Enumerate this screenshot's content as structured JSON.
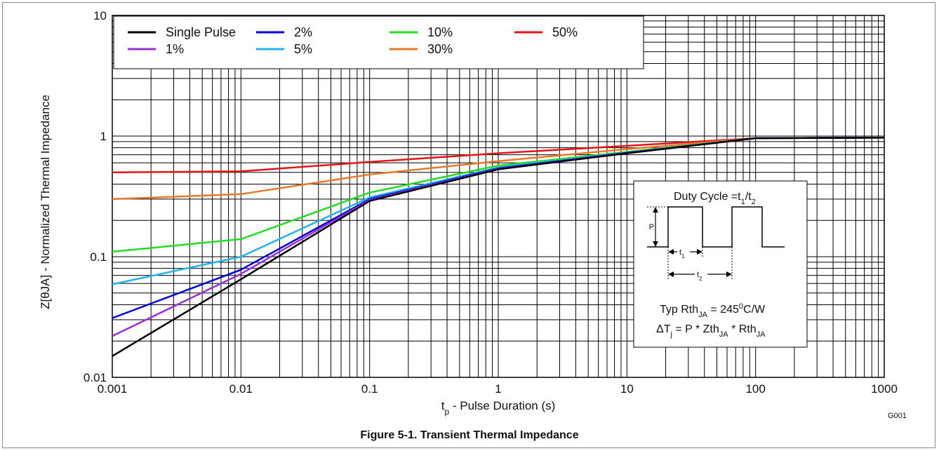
{
  "caption": "Figure 5-1. Transient Thermal Impedance",
  "chart_data": {
    "type": "line",
    "x_scale": "log",
    "y_scale": "log",
    "xlim": [
      0.001,
      1000
    ],
    "ylim": [
      0.01,
      10
    ],
    "grid": true,
    "xlabel_main": "t",
    "xlabel_sub": "p",
    "xlabel_rest": " - Pulse Duration (s)",
    "ylabel": "Z[θJA] - Normalized Thermal Impedance",
    "x_ticks": [
      "0.001",
      "0.01",
      "0.1",
      "1",
      "10",
      "100",
      "1000"
    ],
    "y_ticks": [
      "0.01",
      "0.1",
      "1",
      "10"
    ],
    "corner_code": "G001",
    "legend_position": "top-left",
    "series": [
      {
        "name": "Single Pulse",
        "color": "#000000",
        "x": [
          0.001,
          0.01,
          0.1,
          1,
          10,
          100,
          1000
        ],
        "y": [
          0.015,
          0.065,
          0.29,
          0.53,
          0.72,
          0.96,
          0.97
        ]
      },
      {
        "name": "1%",
        "color": "#9b30d9",
        "x": [
          0.001,
          0.01,
          0.1,
          1,
          10,
          100,
          1000
        ],
        "y": [
          0.022,
          0.072,
          0.295,
          0.535,
          0.72,
          0.96,
          0.97
        ]
      },
      {
        "name": "2%",
        "color": "#0000e6",
        "x": [
          0.001,
          0.01,
          0.1,
          1,
          10,
          100,
          1000
        ],
        "y": [
          0.031,
          0.078,
          0.3,
          0.54,
          0.725,
          0.96,
          0.97
        ]
      },
      {
        "name": "5%",
        "color": "#20b4f0",
        "x": [
          0.001,
          0.01,
          0.1,
          1,
          10,
          100,
          1000
        ],
        "y": [
          0.059,
          0.1,
          0.31,
          0.55,
          0.73,
          0.96,
          0.97
        ]
      },
      {
        "name": "10%",
        "color": "#22dd22",
        "x": [
          0.001,
          0.01,
          0.1,
          1,
          10,
          100,
          1000
        ],
        "y": [
          0.11,
          0.14,
          0.34,
          0.57,
          0.74,
          0.96,
          0.97
        ]
      },
      {
        "name": "30%",
        "color": "#e8782a",
        "x": [
          0.001,
          0.01,
          0.1,
          1,
          10,
          100,
          1000
        ],
        "y": [
          0.3,
          0.33,
          0.48,
          0.62,
          0.78,
          0.96,
          0.97
        ]
      },
      {
        "name": "50%",
        "color": "#e61414",
        "x": [
          0.001,
          0.01,
          0.1,
          1,
          10,
          100,
          1000
        ],
        "y": [
          0.5,
          0.51,
          0.61,
          0.72,
          0.83,
          0.96,
          0.97
        ]
      }
    ],
    "inset": {
      "title_main": "Duty Cycle =t",
      "title_sub1": "1",
      "title_slash": "/t",
      "title_sub2": "2",
      "p_label": "P",
      "t1_label": "t",
      "t1_sub": "1",
      "t2_label": "t",
      "t2_sub": "2",
      "rth_main": "Typ Rth",
      "rth_sub": "JA",
      "rth_eq": " = 245",
      "rth_sup": "0",
      "rth_unit": "C/W",
      "dt_main": "ΔT",
      "dt_sub": "j",
      "dt_eq": " = P * Zth",
      "dt_sub2": "JA",
      "dt_mul": " * Rth",
      "dt_sub3": "JA"
    }
  }
}
